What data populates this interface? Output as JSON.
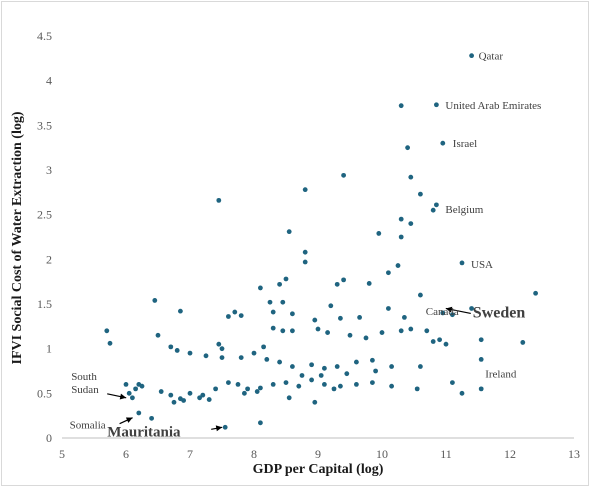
{
  "chart_data": {
    "type": "scatter",
    "title": "",
    "xlabel": "GDP per Capital (log)",
    "ylabel": "IFVI Social Cost of Water Extraction (log)",
    "xlim": [
      5,
      13
    ],
    "ylim": [
      0,
      4.5
    ],
    "x_ticks": [
      "5",
      "6",
      "7",
      "8",
      "9",
      "10",
      "11",
      "12",
      "13"
    ],
    "y_ticks": [
      "0",
      "0.5",
      "1",
      "1.5",
      "2",
      "2.5",
      "3",
      "3.5",
      "4",
      "4.5"
    ],
    "grid": false,
    "legend": "none",
    "marker_color": "#1f6480",
    "points": [
      [
        11.4,
        4.28
      ],
      [
        10.3,
        3.72
      ],
      [
        10.85,
        3.73
      ],
      [
        10.95,
        3.3
      ],
      [
        10.4,
        3.25
      ],
      [
        9.4,
        2.94
      ],
      [
        10.45,
        2.92
      ],
      [
        8.8,
        2.78
      ],
      [
        10.6,
        2.73
      ],
      [
        10.85,
        2.61
      ],
      [
        10.8,
        2.55
      ],
      [
        7.45,
        2.66
      ],
      [
        10.3,
        2.45
      ],
      [
        10.45,
        2.4
      ],
      [
        8.55,
        2.31
      ],
      [
        9.95,
        2.29
      ],
      [
        10.3,
        2.25
      ],
      [
        8.8,
        2.08
      ],
      [
        11.25,
        1.96
      ],
      [
        10.25,
        1.93
      ],
      [
        8.8,
        1.97
      ],
      [
        10.1,
        1.85
      ],
      [
        9.4,
        1.77
      ],
      [
        9.8,
        1.73
      ],
      [
        8.5,
        1.78
      ],
      [
        9.3,
        1.72
      ],
      [
        8.4,
        1.72
      ],
      [
        8.1,
        1.68
      ],
      [
        6.45,
        1.54
      ],
      [
        8.45,
        1.52
      ],
      [
        9.2,
        1.48
      ],
      [
        12.4,
        1.62
      ],
      [
        10.6,
        1.6
      ],
      [
        8.25,
        1.52
      ],
      [
        10.1,
        1.45
      ],
      [
        10.35,
        1.35
      ],
      [
        6.85,
        1.42
      ],
      [
        7.7,
        1.41
      ],
      [
        7.6,
        1.36
      ],
      [
        7.8,
        1.37
      ],
      [
        8.6,
        1.39
      ],
      [
        8.3,
        1.41
      ],
      [
        9.35,
        1.34
      ],
      [
        8.95,
        1.32
      ],
      [
        9.65,
        1.35
      ],
      [
        11.4,
        1.45
      ],
      [
        10.95,
        1.4
      ],
      [
        11.1,
        1.38
      ],
      [
        5.7,
        1.2
      ],
      [
        5.75,
        1.06
      ],
      [
        6.5,
        1.15
      ],
      [
        7.45,
        1.05
      ],
      [
        7.5,
        1.0
      ],
      [
        8.15,
        1.02
      ],
      [
        8.45,
        1.2
      ],
      [
        8.3,
        1.23
      ],
      [
        8.6,
        1.2
      ],
      [
        9.0,
        1.22
      ],
      [
        9.15,
        1.18
      ],
      [
        9.5,
        1.15
      ],
      [
        9.75,
        1.12
      ],
      [
        10.0,
        1.18
      ],
      [
        10.3,
        1.2
      ],
      [
        10.45,
        1.22
      ],
      [
        10.7,
        1.2
      ],
      [
        10.9,
        1.1
      ],
      [
        11.0,
        1.05
      ],
      [
        10.8,
        1.08
      ],
      [
        12.2,
        1.07
      ],
      [
        11.55,
        1.1
      ],
      [
        6.7,
        1.02
      ],
      [
        6.8,
        0.98
      ],
      [
        7.0,
        0.95
      ],
      [
        7.25,
        0.92
      ],
      [
        7.5,
        0.9
      ],
      [
        7.8,
        0.9
      ],
      [
        8.0,
        0.95
      ],
      [
        8.2,
        0.88
      ],
      [
        8.4,
        0.85
      ],
      [
        8.6,
        0.8
      ],
      [
        8.9,
        0.82
      ],
      [
        9.1,
        0.78
      ],
      [
        9.3,
        0.8
      ],
      [
        9.6,
        0.85
      ],
      [
        9.85,
        0.87
      ],
      [
        10.15,
        0.8
      ],
      [
        10.6,
        0.8
      ],
      [
        11.55,
        0.88
      ],
      [
        6.2,
        0.6
      ],
      [
        6.15,
        0.55
      ],
      [
        6.05,
        0.5
      ],
      [
        6.25,
        0.58
      ],
      [
        6.55,
        0.52
      ],
      [
        6.7,
        0.48
      ],
      [
        6.85,
        0.44
      ],
      [
        7.0,
        0.5
      ],
      [
        7.2,
        0.48
      ],
      [
        7.4,
        0.55
      ],
      [
        7.6,
        0.62
      ],
      [
        7.75,
        0.6
      ],
      [
        7.9,
        0.55
      ],
      [
        8.1,
        0.56
      ],
      [
        8.3,
        0.6
      ],
      [
        8.5,
        0.62
      ],
      [
        8.7,
        0.58
      ],
      [
        8.9,
        0.65
      ],
      [
        9.1,
        0.6
      ],
      [
        9.35,
        0.58
      ],
      [
        9.6,
        0.6
      ],
      [
        9.85,
        0.62
      ],
      [
        10.15,
        0.58
      ],
      [
        10.55,
        0.55
      ],
      [
        11.1,
        0.62
      ],
      [
        11.25,
        0.5
      ],
      [
        11.55,
        0.55
      ],
      [
        6.0,
        0.6
      ],
      [
        6.1,
        0.45
      ],
      [
        6.75,
        0.4
      ],
      [
        6.9,
        0.42
      ],
      [
        7.15,
        0.45
      ],
      [
        7.3,
        0.43
      ],
      [
        7.85,
        0.5
      ],
      [
        8.05,
        0.52
      ],
      [
        8.55,
        0.45
      ],
      [
        8.95,
        0.4
      ],
      [
        9.25,
        0.55
      ],
      [
        6.2,
        0.28
      ],
      [
        6.4,
        0.22
      ],
      [
        7.55,
        0.12
      ],
      [
        8.1,
        0.17
      ],
      [
        9.05,
        0.7
      ],
      [
        9.45,
        0.72
      ],
      [
        9.9,
        0.75
      ],
      [
        8.75,
        0.7
      ]
    ],
    "annotations": [
      {
        "label": "Qatar",
        "x": 11.4,
        "y": 4.28
      },
      {
        "label": "United Arab Emirates",
        "x": 10.85,
        "y": 3.73
      },
      {
        "label": "Israel",
        "x": 10.95,
        "y": 3.3
      },
      {
        "label": "Belgium",
        "x": 10.85,
        "y": 2.61
      },
      {
        "label": "USA",
        "x": 11.25,
        "y": 1.96
      },
      {
        "label": "Sweden",
        "x": 10.95,
        "y": 1.45
      },
      {
        "label": "Canada",
        "x": 10.7,
        "y": 1.2
      },
      {
        "label": "Ireland",
        "x": 11.55,
        "y": 0.88
      },
      {
        "label": "South Sudan",
        "x": 6.05,
        "y": 0.45
      },
      {
        "label": "Somalia",
        "x": 6.15,
        "y": 0.25
      },
      {
        "label": "Mauritania",
        "x": 7.55,
        "y": 0.12
      }
    ]
  }
}
